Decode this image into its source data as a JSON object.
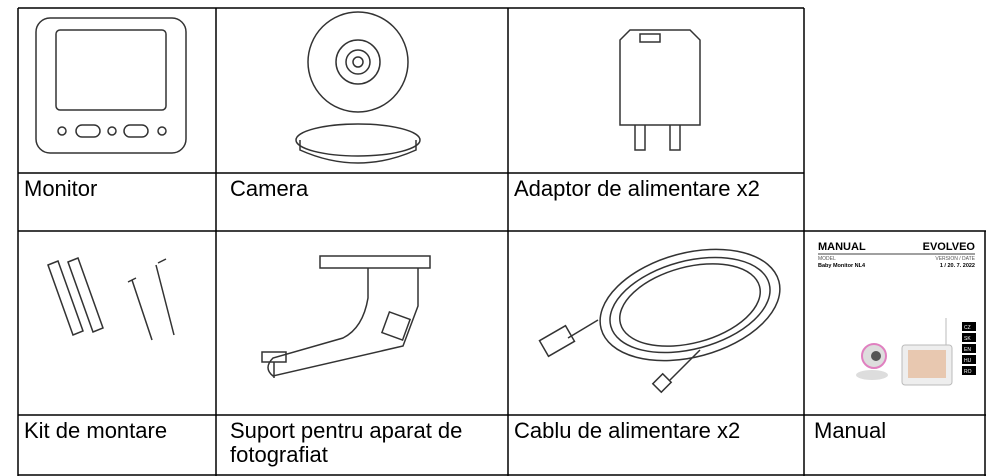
{
  "items": [
    {
      "label": "Monitor"
    },
    {
      "label": "Camera"
    },
    {
      "label": "Adaptor de alimentare x2"
    },
    {
      "label": "Kit de montare"
    },
    {
      "label": "Suport pentru aparat de fotografiat"
    },
    {
      "label": "Cablu de alimentare x2"
    },
    {
      "label": "Manual"
    }
  ],
  "manual_cover": {
    "title": "MANUAL",
    "brand": "EVOLVEO",
    "model_label": "MODEL",
    "version_label": "VERSION / DATE",
    "model": "Baby Monitor NL4",
    "version": "1 / 20. 7. 2022",
    "languages": [
      "CZ",
      "SK",
      "EN",
      "HU",
      "RO"
    ]
  }
}
